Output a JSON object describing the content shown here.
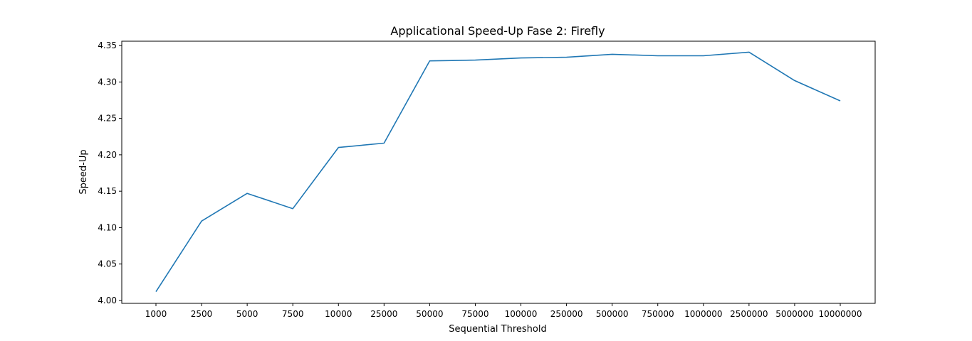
{
  "chart_data": {
    "type": "line",
    "title": "Applicational Speed-Up Fase 2: Firefly",
    "xlabel": "Sequential Threshold",
    "ylabel": "Speed-Up",
    "categories": [
      "1000",
      "2500",
      "5000",
      "7500",
      "10000",
      "25000",
      "50000",
      "75000",
      "100000",
      "250000",
      "500000",
      "750000",
      "1000000",
      "2500000",
      "5000000",
      "10000000"
    ],
    "series": [
      {
        "color": "#1f77b4",
        "values": [
          4.012,
          4.109,
          4.147,
          4.126,
          4.21,
          4.216,
          4.329,
          4.33,
          4.333,
          4.334,
          4.338,
          4.336,
          4.336,
          4.341,
          4.302,
          4.274
        ]
      }
    ],
    "ylim": [
      3.996,
      4.356
    ],
    "yticks": [
      "4.00",
      "4.05",
      "4.10",
      "4.15",
      "4.20",
      "4.25",
      "4.30",
      "4.35"
    ],
    "grid": false,
    "legend": "none"
  }
}
